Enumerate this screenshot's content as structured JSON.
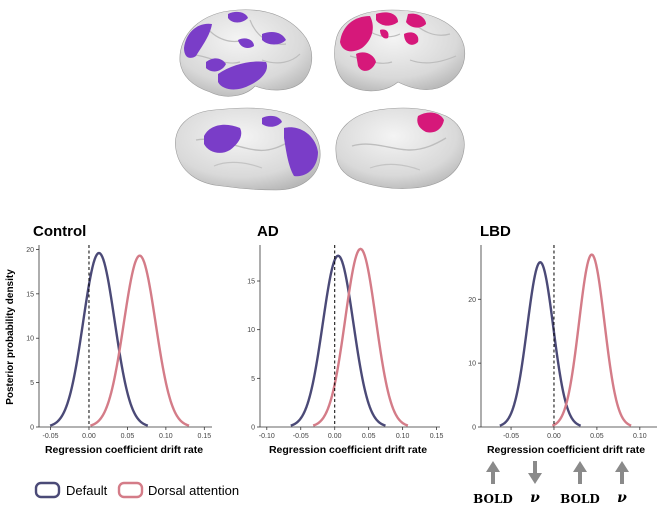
{
  "brain_images": {
    "default_network_color": "#7a3dc8",
    "dorsal_attention_color": "#d6187a",
    "cortex_color": "#dcdcdc"
  },
  "chart_data": [
    {
      "type": "line",
      "title": "Control",
      "xlabel": "Regression coefficient drift rate",
      "ylabel": "Posterior probability density",
      "xlim": [
        -0.065,
        0.16
      ],
      "ylim": [
        0,
        20.5
      ],
      "xticks": [
        -0.05,
        0.0,
        0.05,
        0.1,
        0.15
      ],
      "xtick_labels": [
        "-0.05",
        "0.00",
        "0.05",
        "0.10",
        "0.15"
      ],
      "yticks": [
        0,
        5,
        10,
        15,
        20
      ],
      "ytick_labels": [
        "0",
        "5",
        "10",
        "15",
        "20"
      ],
      "vline": 0,
      "series": [
        {
          "name": "Default",
          "color": "#4b4a77",
          "mean": 0.013,
          "sd": 0.0205,
          "peak": 19.6
        },
        {
          "name": "Dorsal attention",
          "color": "#d47c88",
          "mean": 0.066,
          "sd": 0.0207,
          "peak": 19.3
        }
      ]
    },
    {
      "type": "line",
      "title": "AD",
      "xlabel": "Regression coefficient drift rate",
      "ylabel": "",
      "xlim": [
        -0.11,
        0.155
      ],
      "ylim": [
        0,
        18.7
      ],
      "xticks": [
        -0.1,
        -0.05,
        0.0,
        0.05,
        0.1,
        0.15
      ],
      "xtick_labels": [
        "-0.10",
        "-0.05",
        "0.00",
        "0.05",
        "0.10",
        "0.15"
      ],
      "yticks": [
        0,
        5,
        10,
        15
      ],
      "ytick_labels": [
        "0",
        "5",
        "10",
        "15"
      ],
      "vline": 0,
      "series": [
        {
          "name": "Default",
          "color": "#4b4a77",
          "mean": 0.005,
          "sd": 0.0225,
          "peak": 17.6
        },
        {
          "name": "Dorsal attention",
          "color": "#d47c88",
          "mean": 0.038,
          "sd": 0.0225,
          "peak": 18.3
        }
      ]
    },
    {
      "type": "line",
      "title": "LBD",
      "xlabel": "Regression coefficient drift rate",
      "ylabel": "",
      "xlim": [
        -0.085,
        0.12
      ],
      "ylim": [
        0,
        28.5
      ],
      "xticks": [
        -0.05,
        0.0,
        0.05,
        0.1
      ],
      "xtick_labels": [
        "-0.05",
        "0.00",
        "0.05",
        "0.10"
      ],
      "yticks": [
        0,
        10,
        20
      ],
      "ytick_labels": [
        "0",
        "10",
        "20"
      ],
      "vline": 0,
      "series": [
        {
          "name": "Default",
          "color": "#4b4a77",
          "mean": -0.016,
          "sd": 0.0152,
          "peak": 25.8
        },
        {
          "name": "Dorsal attention",
          "color": "#d47c88",
          "mean": 0.044,
          "sd": 0.0148,
          "peak": 27.0
        }
      ]
    }
  ],
  "legend": {
    "items": [
      {
        "label": "Default",
        "color": "#4b4a77"
      },
      {
        "label": "Dorsal attention",
        "color": "#d47c88"
      }
    ]
  },
  "annotations": [
    {
      "label": "BOLD",
      "direction": "up"
    },
    {
      "label": "ν",
      "direction": "down"
    },
    {
      "label": "BOLD",
      "direction": "up"
    },
    {
      "label": "ν",
      "direction": "up"
    }
  ]
}
